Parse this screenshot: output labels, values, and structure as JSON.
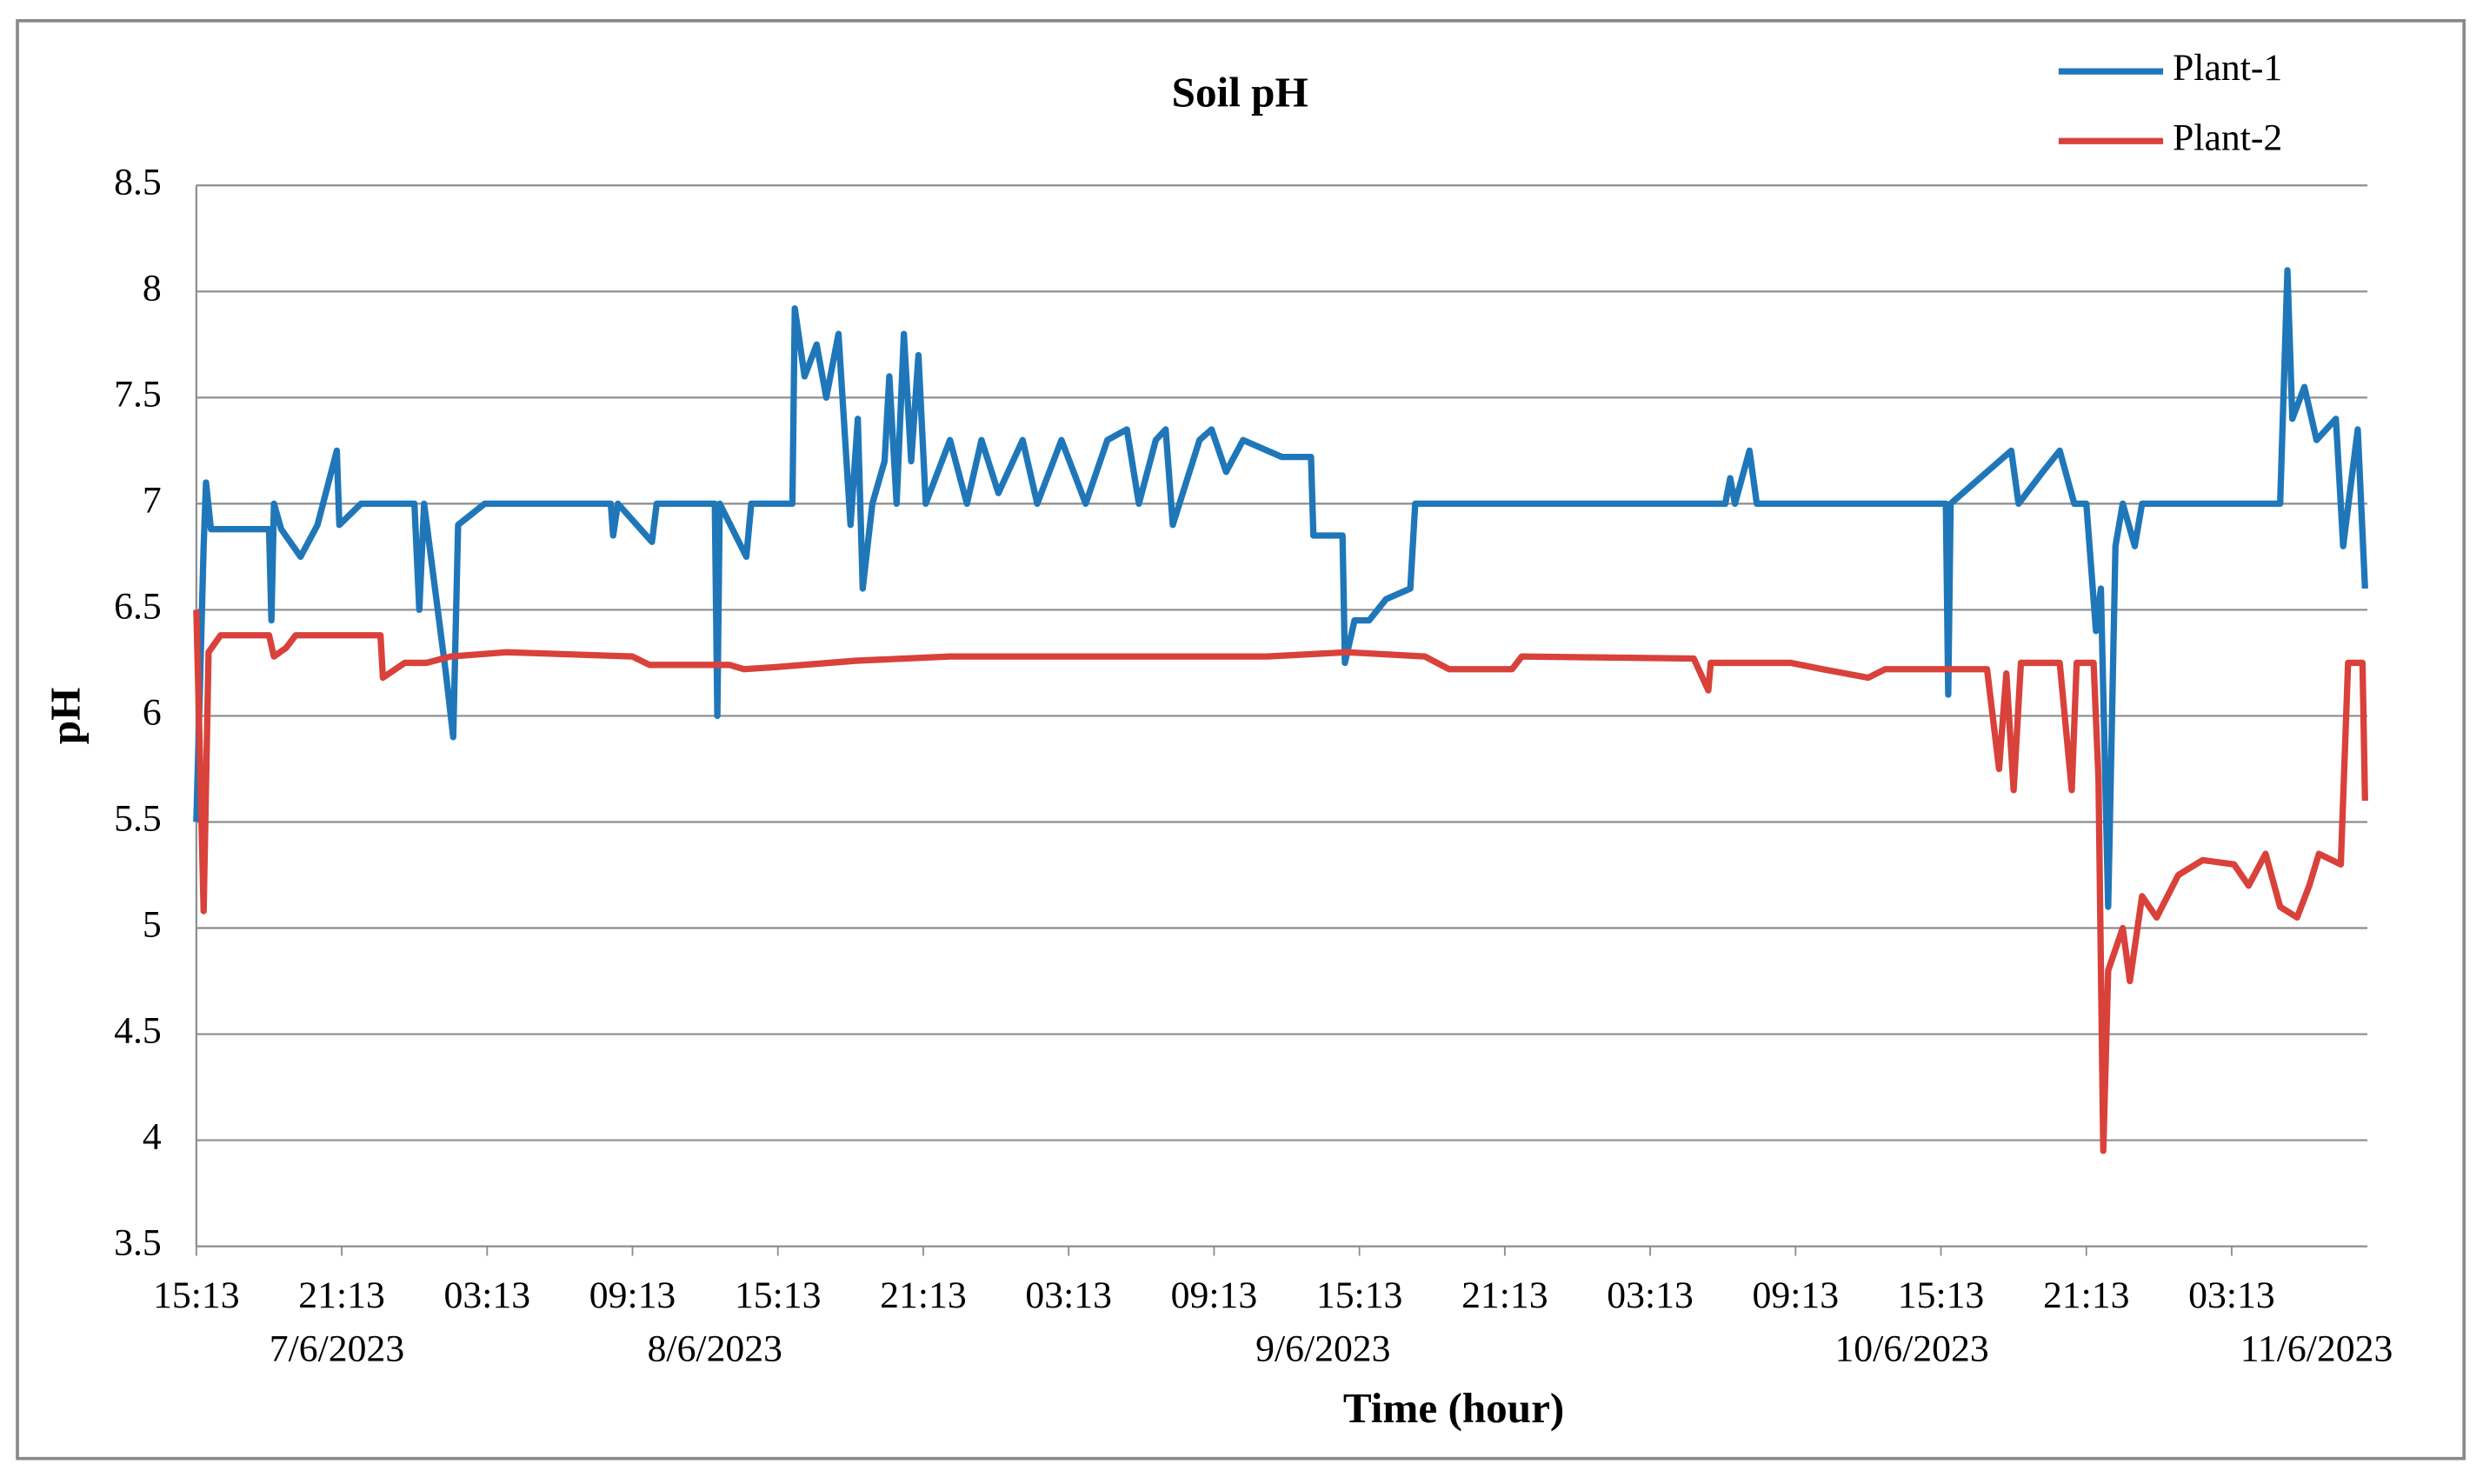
{
  "chart_data": {
    "type": "line",
    "title": "Soil pH",
    "x_label": "Time (hour)",
    "y_label": "pH",
    "xlim": [
      0,
      89.6
    ],
    "xticks": [
      {
        "value": 0,
        "label": "15:13"
      },
      {
        "value": 6,
        "label": "21:13"
      },
      {
        "value": 12,
        "label": "03:13"
      },
      {
        "value": 18,
        "label": "09:13"
      },
      {
        "value": 24,
        "label": "15:13"
      },
      {
        "value": 30,
        "label": "21:13"
      },
      {
        "value": 36,
        "label": "03:13"
      },
      {
        "value": 42,
        "label": "09:13"
      },
      {
        "value": 48,
        "label": "15:13"
      },
      {
        "value": 54,
        "label": "21:13"
      },
      {
        "value": 60,
        "label": "03:13"
      },
      {
        "value": 66,
        "label": "09:13"
      },
      {
        "value": 72,
        "label": "15:13"
      },
      {
        "value": 78,
        "label": "21:13"
      },
      {
        "value": 84,
        "label": "03:13"
      }
    ],
    "date_labels": [
      {
        "value": 5.8,
        "label": "7/6/2023"
      },
      {
        "value": 21.4,
        "label": "8/6/2023"
      },
      {
        "value": 46.5,
        "label": "9/6/2023"
      },
      {
        "value": 70.8,
        "label": "10/6/2023"
      },
      {
        "value": 87.5,
        "label": "11/6/2023"
      }
    ],
    "ylim": [
      3.5,
      8.5
    ],
    "yticks": [
      3.5,
      4,
      4.5,
      5,
      5.5,
      6,
      6.5,
      7,
      7.5,
      8,
      8.5
    ],
    "grid": true,
    "legend": "top-right",
    "series": [
      {
        "name": "Plant-1",
        "color": "#1f77b9",
        "x": [
          0,
          0.3,
          0.4,
          0.6,
          3.0,
          3.1,
          3.2,
          3.5,
          4.3,
          5.0,
          5.8,
          5.9,
          6.8,
          9.0,
          9.2,
          9.4,
          10.3,
          10.6,
          10.8,
          11.9,
          17.1,
          17.2,
          17.4,
          18.8,
          19.0,
          21.4,
          21.5,
          21.6,
          22.7,
          22.9,
          24.6,
          24.7,
          25.1,
          25.6,
          26.0,
          26.5,
          27.0,
          27.3,
          27.5,
          27.9,
          28.4,
          28.6,
          28.9,
          29.2,
          29.5,
          29.8,
          30.1,
          31.1,
          31.8,
          32.4,
          33.1,
          34.1,
          34.7,
          35.7,
          36.7,
          37.6,
          38.4,
          38.9,
          39.6,
          40.0,
          40.3,
          41.4,
          41.9,
          42.5,
          43.2,
          44.2,
          44.8,
          46.0,
          46.1,
          47.3,
          47.4,
          47.8,
          48.4,
          49.1,
          50.1,
          50.3,
          63.1,
          63.3,
          63.5,
          64.1,
          64.4,
          72.2,
          72.3,
          72.4,
          74.9,
          75.2,
          76.2,
          76.9,
          77.5,
          78.0,
          78.4,
          78.6,
          78.9,
          79.2,
          79.5,
          80.0,
          80.3,
          86.0,
          86.3,
          86.5,
          87.0,
          87.5,
          88.3,
          88.6,
          89.2,
          89.5
        ],
        "values": [
          5.5,
          6.8,
          7.1,
          6.88,
          6.88,
          6.45,
          7.0,
          6.88,
          6.75,
          6.9,
          7.25,
          6.9,
          7.0,
          7.0,
          6.5,
          7.0,
          6.2,
          5.9,
          6.9,
          7.0,
          7.0,
          6.85,
          7.0,
          6.82,
          7.0,
          7.0,
          6.0,
          7.0,
          6.75,
          7.0,
          7.0,
          7.92,
          7.6,
          7.75,
          7.5,
          7.8,
          6.9,
          7.4,
          6.6,
          7.0,
          7.2,
          7.6,
          7.0,
          7.8,
          7.2,
          7.7,
          7.0,
          7.3,
          7.0,
          7.3,
          7.05,
          7.3,
          7.0,
          7.3,
          7.0,
          7.3,
          7.35,
          7.0,
          7.3,
          7.35,
          6.9,
          7.3,
          7.35,
          7.15,
          7.3,
          7.25,
          7.22,
          7.22,
          6.85,
          6.85,
          6.25,
          6.45,
          6.45,
          6.55,
          6.6,
          7.0,
          7.0,
          7.12,
          7.0,
          7.25,
          7.0,
          7.0,
          6.1,
          7.0,
          7.25,
          7.0,
          7.15,
          7.25,
          7.0,
          7.0,
          6.4,
          6.6,
          5.1,
          6.8,
          7.0,
          6.8,
          7.0,
          7.0,
          8.1,
          7.4,
          7.55,
          7.3,
          7.4,
          6.8,
          7.35,
          6.6
        ]
      },
      {
        "name": "Plant-2",
        "color": "#d9413b",
        "x": [
          0,
          0.3,
          0.5,
          1.0,
          3.0,
          3.2,
          3.7,
          4.1,
          7.6,
          7.7,
          8.6,
          9.5,
          10.5,
          12.8,
          18.0,
          18.7,
          22.0,
          22.6,
          23.9,
          27.2,
          31.1,
          40.9,
          44.2,
          47.5,
          50.7,
          51.7,
          54.3,
          54.7,
          61.8,
          62.4,
          62.5,
          65.8,
          67.1,
          69.0,
          69.7,
          73.9,
          74.4,
          74.7,
          75.0,
          75.3,
          76.9,
          77.4,
          77.6,
          78.3,
          78.5,
          78.7,
          78.9,
          79.5,
          79.8,
          80.3,
          80.9,
          81.8,
          82.8,
          84.1,
          84.7,
          85.4,
          86.0,
          86.7,
          87.2,
          87.6,
          88.5,
          88.8,
          89.4,
          89.5
        ],
        "values": [
          6.5,
          5.08,
          6.3,
          6.38,
          6.38,
          6.28,
          6.32,
          6.38,
          6.38,
          6.18,
          6.25,
          6.25,
          6.28,
          6.3,
          6.28,
          6.24,
          6.24,
          6.22,
          6.23,
          6.26,
          6.28,
          6.28,
          6.28,
          6.3,
          6.28,
          6.22,
          6.22,
          6.28,
          6.27,
          6.12,
          6.25,
          6.25,
          6.22,
          6.18,
          6.22,
          6.22,
          5.75,
          6.2,
          5.65,
          6.25,
          6.25,
          5.65,
          6.25,
          6.25,
          5.7,
          3.95,
          4.8,
          5.0,
          4.75,
          5.15,
          5.05,
          5.25,
          5.32,
          5.3,
          5.2,
          5.35,
          5.1,
          5.05,
          5.2,
          5.35,
          5.3,
          6.25,
          6.25,
          5.6
        ]
      }
    ]
  }
}
